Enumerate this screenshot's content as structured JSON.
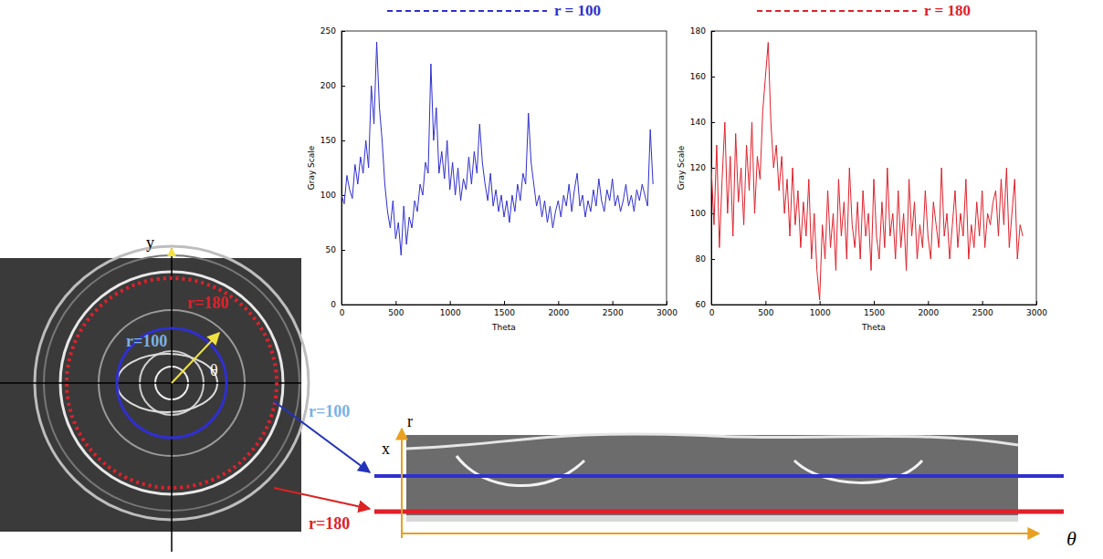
{
  "chart_data": [
    {
      "type": "line",
      "xlabel": "Theta",
      "ylabel": "Gray Scale",
      "legend": "top",
      "grid": false,
      "xlim": [
        0,
        3000
      ],
      "xticks": [
        0,
        500,
        1000,
        1500,
        2000,
        2500,
        3000
      ],
      "ylim": [
        0,
        250
      ],
      "yticks": [
        0,
        50,
        100,
        150,
        200,
        250
      ],
      "x": [
        0,
        25,
        50,
        75,
        100,
        125,
        150,
        175,
        200,
        225,
        250,
        275,
        300,
        325,
        350,
        375,
        400,
        425,
        450,
        475,
        500,
        525,
        550,
        575,
        600,
        625,
        650,
        675,
        700,
        725,
        750,
        775,
        800,
        825,
        850,
        875,
        900,
        925,
        950,
        975,
        1000,
        1025,
        1050,
        1075,
        1100,
        1125,
        1150,
        1175,
        1200,
        1225,
        1250,
        1275,
        1300,
        1325,
        1350,
        1375,
        1400,
        1425,
        1450,
        1475,
        1500,
        1525,
        1550,
        1575,
        1600,
        1625,
        1650,
        1675,
        1700,
        1725,
        1750,
        1775,
        1800,
        1825,
        1850,
        1875,
        1900,
        1925,
        1950,
        1975,
        2000,
        2025,
        2050,
        2075,
        2100,
        2125,
        2150,
        2175,
        2200,
        2225,
        2250,
        2275,
        2300,
        2325,
        2350,
        2375,
        2400,
        2425,
        2450,
        2475,
        2500,
        2525,
        2550,
        2575,
        2600,
        2625,
        2650,
        2675,
        2700,
        2725,
        2750,
        2775,
        2800,
        2825,
        2850,
        2875
      ],
      "series": [
        {
          "name": "r = 100",
          "color": "#2f2fd0",
          "values": [
            100,
            92,
            118,
            105,
            97,
            128,
            110,
            135,
            120,
            150,
            125,
            200,
            165,
            240,
            180,
            150,
            110,
            85,
            70,
            95,
            60,
            75,
            45,
            90,
            55,
            80,
            70,
            95,
            85,
            110,
            100,
            130,
            120,
            220,
            150,
            180,
            120,
            140,
            115,
            150,
            105,
            130,
            100,
            125,
            95,
            115,
            105,
            135,
            110,
            140,
            120,
            165,
            130,
            110,
            95,
            120,
            90,
            105,
            85,
            100,
            80,
            95,
            75,
            100,
            85,
            110,
            95,
            120,
            110,
            175,
            130,
            110,
            90,
            100,
            80,
            95,
            75,
            90,
            70,
            85,
            95,
            80,
            100,
            90,
            110,
            85,
            105,
            120,
            90,
            100,
            80,
            95,
            85,
            105,
            90,
            115,
            95,
            85,
            105,
            95,
            115,
            90,
            100,
            85,
            95,
            110,
            90,
            100,
            85,
            105,
            95,
            110,
            100,
            90,
            160,
            110
          ]
        }
      ]
    },
    {
      "type": "line",
      "xlabel": "Theta",
      "ylabel": "Gray Scale",
      "legend": "top",
      "grid": false,
      "xlim": [
        0,
        3000
      ],
      "xticks": [
        0,
        500,
        1000,
        1500,
        2000,
        2500,
        3000
      ],
      "ylim": [
        60,
        180
      ],
      "yticks": [
        60,
        80,
        100,
        120,
        140,
        160,
        180
      ],
      "x": [
        0,
        25,
        50,
        75,
        100,
        125,
        150,
        175,
        200,
        225,
        250,
        275,
        300,
        325,
        350,
        375,
        400,
        425,
        450,
        475,
        500,
        525,
        550,
        575,
        600,
        625,
        650,
        675,
        700,
        725,
        750,
        775,
        800,
        825,
        850,
        875,
        900,
        925,
        950,
        975,
        1000,
        1025,
        1050,
        1075,
        1100,
        1125,
        1150,
        1175,
        1200,
        1225,
        1250,
        1275,
        1300,
        1325,
        1350,
        1375,
        1400,
        1425,
        1450,
        1475,
        1500,
        1525,
        1550,
        1575,
        1600,
        1625,
        1650,
        1675,
        1700,
        1725,
        1750,
        1775,
        1800,
        1825,
        1850,
        1875,
        1900,
        1925,
        1950,
        1975,
        2000,
        2025,
        2050,
        2075,
        2100,
        2125,
        2150,
        2175,
        2200,
        2225,
        2250,
        2275,
        2300,
        2325,
        2350,
        2375,
        2400,
        2425,
        2450,
        2475,
        2500,
        2525,
        2550,
        2575,
        2600,
        2625,
        2650,
        2675,
        2700,
        2725,
        2750,
        2775,
        2800,
        2825,
        2850,
        2875
      ],
      "series": [
        {
          "name": "r = 180",
          "color": "#e0202a",
          "values": [
            120,
            95,
            130,
            85,
            115,
            140,
            100,
            125,
            90,
            135,
            105,
            120,
            95,
            130,
            110,
            140,
            100,
            125,
            115,
            145,
            160,
            175,
            140,
            120,
            130,
            110,
            125,
            100,
            115,
            90,
            120,
            95,
            110,
            85,
            105,
            90,
            115,
            80,
            100,
            75,
            62,
            95,
            80,
            110,
            85,
            100,
            75,
            115,
            90,
            105,
            80,
            120,
            95,
            85,
            105,
            80,
            110,
            90,
            100,
            75,
            115,
            90,
            80,
            105,
            85,
            120,
            90,
            100,
            80,
            110,
            85,
            100,
            75,
            115,
            90,
            105,
            80,
            95,
            85,
            110,
            90,
            80,
            105,
            95,
            85,
            120,
            90,
            100,
            80,
            95,
            110,
            85,
            100,
            90,
            115,
            80,
            95,
            85,
            105,
            90,
            110,
            85,
            100,
            95,
            105,
            110,
            90,
            115,
            95,
            120,
            85,
            100,
            115,
            80,
            95,
            90
          ]
        }
      ]
    }
  ],
  "diagram": {
    "texts": [
      "y",
      "θ",
      "r=180",
      "r=100",
      "r=100",
      "r=180",
      "x",
      "r",
      "θ"
    ]
  }
}
